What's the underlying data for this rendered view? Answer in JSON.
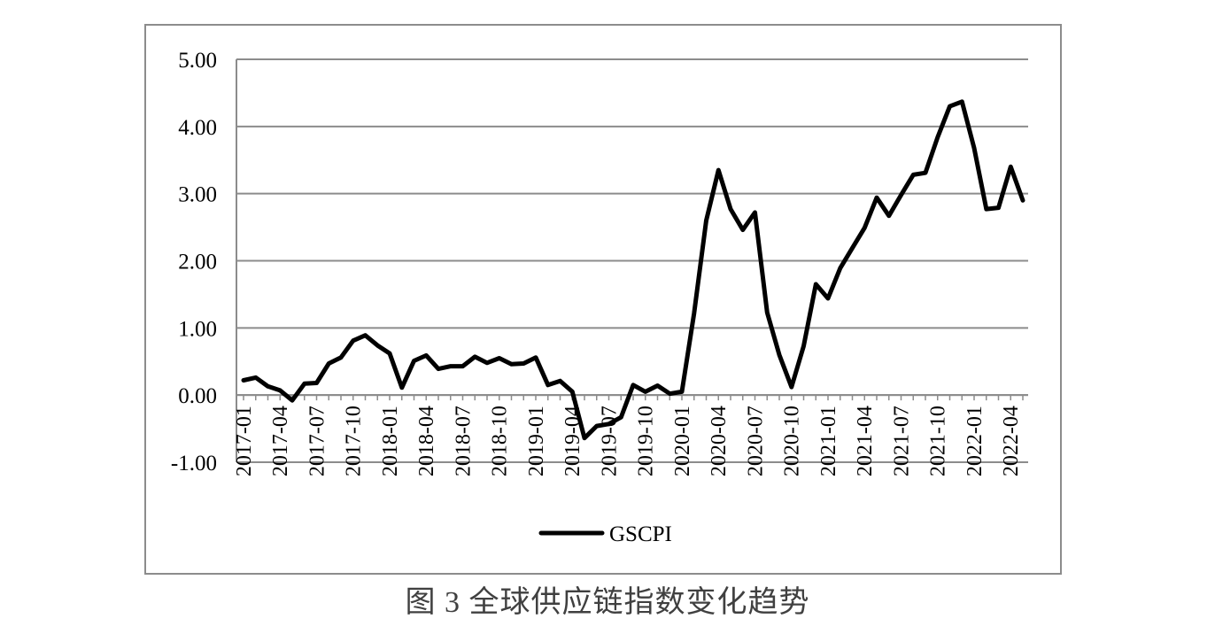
{
  "caption": "图 3 全球供应链指数变化趋势",
  "chart_data": {
    "type": "line",
    "title": "",
    "xlabel": "",
    "ylabel": "",
    "ylim": [
      -1.0,
      5.0
    ],
    "y_ticks": [
      "-1.00",
      "0.00",
      "1.00",
      "2.00",
      "3.00",
      "4.00",
      "5.00"
    ],
    "y_tick_values": [
      -1,
      0,
      1,
      2,
      3,
      4,
      5
    ],
    "grid": true,
    "legend": "bottom",
    "x_tick_labels": [
      "2017-01",
      "2017-04",
      "2017-07",
      "2017-10",
      "2018-01",
      "2018-04",
      "2018-07",
      "2018-10",
      "2019-01",
      "2019-04",
      "2019-07",
      "2019-10",
      "2020-01",
      "2020-04",
      "2020-07",
      "2020-10",
      "2021-01",
      "2021-04",
      "2021-07",
      "2021-10",
      "2022-01",
      "2022-04"
    ],
    "x": [
      "2017-01",
      "2017-02",
      "2017-03",
      "2017-04",
      "2017-05",
      "2017-06",
      "2017-07",
      "2017-08",
      "2017-09",
      "2017-10",
      "2017-11",
      "2017-12",
      "2018-01",
      "2018-02",
      "2018-03",
      "2018-04",
      "2018-05",
      "2018-06",
      "2018-07",
      "2018-08",
      "2018-09",
      "2018-10",
      "2018-11",
      "2018-12",
      "2019-01",
      "2019-02",
      "2019-03",
      "2019-04",
      "2019-05",
      "2019-06",
      "2019-07",
      "2019-08",
      "2019-09",
      "2019-10",
      "2019-11",
      "2019-12",
      "2020-01",
      "2020-02",
      "2020-03",
      "2020-04",
      "2020-05",
      "2020-06",
      "2020-07",
      "2020-08",
      "2020-09",
      "2020-10",
      "2020-11",
      "2020-12",
      "2021-01",
      "2021-02",
      "2021-03",
      "2021-04",
      "2021-05",
      "2021-06",
      "2021-07",
      "2021-08",
      "2021-09",
      "2021-10",
      "2021-11",
      "2021-12",
      "2022-01",
      "2022-02",
      "2022-03",
      "2022-04",
      "2022-05"
    ],
    "series": [
      {
        "name": "GSCPI",
        "color": "#000000",
        "values": [
          0.22,
          0.26,
          0.13,
          0.07,
          -0.08,
          0.17,
          0.18,
          0.47,
          0.56,
          0.81,
          0.89,
          0.74,
          0.62,
          0.11,
          0.51,
          0.59,
          0.39,
          0.43,
          0.43,
          0.57,
          0.48,
          0.55,
          0.46,
          0.47,
          0.56,
          0.15,
          0.21,
          0.05,
          -0.64,
          -0.46,
          -0.43,
          -0.33,
          0.15,
          0.05,
          0.14,
          0.02,
          0.05,
          1.22,
          2.6,
          3.35,
          2.77,
          2.46,
          2.72,
          1.23,
          0.6,
          0.12,
          0.73,
          1.65,
          1.44,
          1.89,
          2.19,
          2.49,
          2.94,
          2.67,
          2.98,
          3.28,
          3.31,
          3.84,
          4.3,
          4.37,
          3.68,
          2.77,
          2.79,
          3.4,
          2.9
        ]
      }
    ]
  }
}
